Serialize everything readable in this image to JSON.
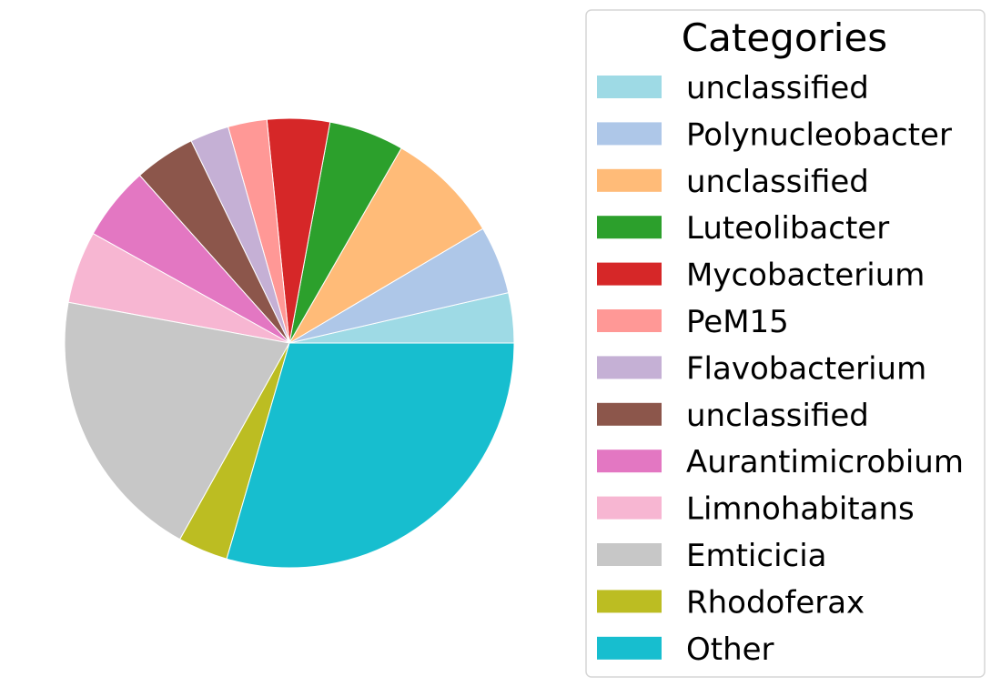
{
  "chart_data": {
    "type": "pie",
    "title": "",
    "legend": {
      "title": "Categories",
      "placement": "right"
    },
    "start_angle_deg": 0,
    "direction": "counterclockwise",
    "slices": [
      {
        "label": "unclassified",
        "value": 3.6,
        "color": "#9edae5"
      },
      {
        "label": "Polynucleobacter",
        "value": 4.9,
        "color": "#aec7e8"
      },
      {
        "label": "unclassified",
        "value": 8.2,
        "color": "#ffbb78"
      },
      {
        "label": "Luteolibacter",
        "value": 5.4,
        "color": "#2ca02c"
      },
      {
        "label": "Mycobacterium",
        "value": 4.5,
        "color": "#d62728"
      },
      {
        "label": "PeM15",
        "value": 2.8,
        "color": "#ff9896"
      },
      {
        "label": "Flavobacterium",
        "value": 2.8,
        "color": "#c5b0d5"
      },
      {
        "label": "unclassified",
        "value": 4.4,
        "color": "#8c564b"
      },
      {
        "label": "Aurantimicrobium",
        "value": 5.3,
        "color": "#e377c2"
      },
      {
        "label": "Limnohabitans",
        "value": 5.2,
        "color": "#f7b6d2"
      },
      {
        "label": "Emticicia",
        "value": 19.8,
        "color": "#c7c7c7"
      },
      {
        "label": "Rhodoferax",
        "value": 3.6,
        "color": "#bcbd22"
      },
      {
        "label": "Other",
        "value": 29.5,
        "color": "#17becf"
      }
    ]
  }
}
